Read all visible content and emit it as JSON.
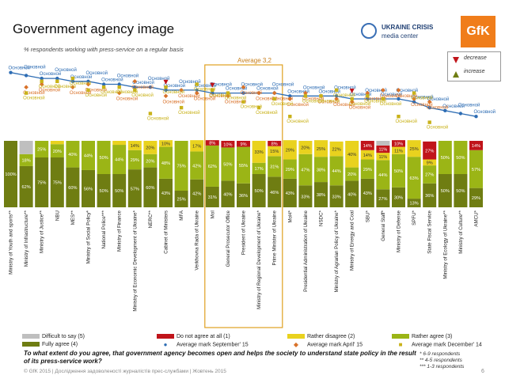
{
  "header": {
    "title": "Government agency image",
    "subtitle": "% respondents working with press-service on a regular basis",
    "logo_ucmc_line1": "UKRAINE CRISIS",
    "logo_ucmc_line2": "media center",
    "logo_gfk": "GfK"
  },
  "legend_box": {
    "decrease": "decrease",
    "increase": "increase"
  },
  "average_label": "Average 3,2",
  "colors": {
    "difficult": "#bfbfbf",
    "not_at_all": "#c0141a",
    "rather_disagree": "#e9d21e",
    "rather_agree": "#9bb516",
    "fully_agree": "#6f7d12",
    "avg_sep15": "#2e6db4",
    "avg_apr15": "#d9722a",
    "avg_dec14": "#c9b21a",
    "highlight": "#e0a020"
  },
  "chart_data": {
    "type": "bar",
    "stacked": true,
    "ylim": [
      0,
      100
    ],
    "categories": [
      "Ministry of Youth and sports**",
      "Ministry of Infrastructure**",
      "Ministry of Justice**",
      "NBU",
      "MES**",
      "Ministry of Social Policy*",
      "National Police***",
      "Ministry of Finance",
      "Ministry of Economic Development of Ukraine*",
      "NERC**",
      "Cabinet of Ministers",
      "MFA",
      "Verkhovna Rada of Ukraine",
      "MoI",
      "General Prosecutor Office",
      "President of Ukraine",
      "Ministry of Regional Development of Ukraine*",
      "Prime Minister of Ukraine",
      "MoH*",
      "Presidential Administration of Ukraine",
      "NSDC*",
      "Ministry of Agrarian Policy of Ukraine*",
      "Ministry of Energy and Coal",
      "SBU*",
      "General Staff*",
      "Ministry of Defense",
      "SPFU*",
      "State Fiscal Service",
      "Ministry of Ecology of Ukraine**",
      "Ministry of Culture**",
      "AMCU*"
    ],
    "series": [
      {
        "name": "Fully agree (4)",
        "key": "fully_agree",
        "values": [
          100,
          62,
          75,
          75,
          60,
          56,
          50,
          50,
          57,
          60,
          43,
          25,
          42,
          31,
          40,
          36,
          50,
          46,
          43,
          33,
          38,
          33,
          40,
          43,
          27,
          30,
          13,
          36,
          50,
          50,
          29
        ],
        "labels": [
          "100%",
          "62%",
          "75%",
          "75%",
          "60%",
          "56%",
          "50%",
          "50%",
          "57%",
          "60%",
          "43%",
          "25%",
          "42%",
          "31%",
          "40%",
          "36%",
          "50%",
          "46%",
          "43%",
          "33%",
          "38%",
          "33%",
          "40%",
          "43%",
          "27%",
          "30%",
          "13%",
          "36%",
          "50%",
          "50%",
          "29%"
        ]
      },
      {
        "name": "Rather agree (3)",
        "key": "rather_agree",
        "values": [
          0,
          18,
          25,
          20,
          40,
          44,
          50,
          44,
          29,
          20,
          48,
          75,
          42,
          62,
          50,
          55,
          17,
          31,
          29,
          47,
          38,
          44,
          20,
          29,
          44,
          50,
          63,
          27,
          50,
          50,
          57
        ],
        "labels": [
          "",
          "18%",
          "25%",
          "20%",
          "40%",
          "44%",
          "50%",
          "44%",
          "29%",
          "20%",
          "48%",
          "75%",
          "42%",
          "62%",
          "50%",
          "55%",
          "17%",
          "31%",
          "29%",
          "47%",
          "38%",
          "44%",
          "20%",
          "29%",
          "44%",
          "50%",
          "63%",
          "27%",
          "50%",
          "50%",
          "57%"
        ]
      },
      {
        "name": "Rather disagree (2)",
        "key": "rather_disagree",
        "values": [
          0,
          0,
          0,
          5,
          0,
          0,
          0,
          6,
          14,
          20,
          10,
          0,
          17,
          0,
          0,
          0,
          33,
          15,
          29,
          20,
          25,
          22,
          40,
          14,
          11,
          11,
          25,
          9,
          0,
          0,
          0
        ],
        "labels": [
          "",
          "",
          "",
          "5%",
          "",
          "",
          "",
          "6%",
          "14%",
          "20%",
          "10%",
          "",
          "17%",
          "",
          "",
          "",
          "33%",
          "15%",
          "29%",
          "20%",
          "25%",
          "22%",
          "40%",
          "14%",
          "11%",
          "11%",
          "25%",
          "9%",
          "",
          "",
          ""
        ]
      },
      {
        "name": "Do not agree at all (1)",
        "key": "not_at_all",
        "values": [
          0,
          0,
          0,
          0,
          0,
          0,
          0,
          0,
          0,
          0,
          0,
          0,
          0,
          8,
          10,
          9,
          0,
          8,
          0,
          0,
          0,
          0,
          0,
          14,
          11,
          10,
          0,
          27,
          0,
          0,
          14
        ],
        "labels": [
          "",
          "",
          "",
          "",
          "",
          "",
          "",
          "",
          "",
          "",
          "",
          "",
          "",
          "8%",
          "10%",
          "9%",
          "",
          "8%",
          "",
          "",
          "",
          "",
          "",
          "14%",
          "11%",
          "10%",
          "",
          "27%",
          "",
          "",
          "14%"
        ]
      },
      {
        "name": "Difficult to say (5)",
        "key": "difficult",
        "values": [
          0,
          20,
          0,
          0,
          0,
          0,
          0,
          0,
          0,
          0,
          0,
          0,
          0,
          0,
          0,
          0,
          0,
          0,
          0,
          0,
          0,
          0,
          0,
          0,
          7,
          0,
          0,
          0,
          0,
          0,
          0
        ],
        "labels": [
          "",
          "",
          "",
          "",
          "",
          "",
          "",
          "",
          "",
          "",
          "",
          "",
          "",
          "",
          "",
          "",
          "",
          "",
          "",
          "",
          "",
          "",
          "",
          "",
          "",
          "",
          "",
          "",
          "",
          "",
          ""
        ]
      }
    ],
    "avg_sep15": [
      3.9,
      3.8,
      3.7,
      3.7,
      3.6,
      3.6,
      3.5,
      3.5,
      3.4,
      3.4,
      3.3,
      3.3,
      3.3,
      3.2,
      3.2,
      3.2,
      3.2,
      3.2,
      3.1,
      3.1,
      3.1,
      3.1,
      3.0,
      3.0,
      3.0,
      3.0,
      2.9,
      2.7,
      2.6,
      2.5,
      2.4
    ],
    "avg_apr15": [
      null,
      3.4,
      3.5,
      null,
      3.4,
      3.5,
      null,
      3.2,
      3.6,
      null,
      3.1,
      3.3,
      3.2,
      3.3,
      3.1,
      3.4,
      3.2,
      3.2,
      3.0,
      3.2,
      3.1,
      3.0,
      2.9,
      3.2,
      3.3,
      3.3,
      3.0,
      2.9,
      null,
      null,
      null
    ],
    "avg_dec14": [
      null,
      3.2,
      3.6,
      3.6,
      3.7,
      3.3,
      3.4,
      3.4,
      3.3,
      2.5,
      3.4,
      2.7,
      3.5,
      3.3,
      3.2,
      2.9,
      2.7,
      3.0,
      2.4,
      3.1,
      3.1,
      3.3,
      3.0,
      3.1,
      3.0,
      2.4,
      3.2,
      2.2,
      null,
      null,
      null
    ],
    "trend": [
      "",
      "",
      "",
      "",
      "",
      "",
      "",
      "",
      "",
      "",
      "decrease",
      "",
      "",
      "decrease",
      "",
      "",
      "",
      "",
      "",
      "",
      "",
      "",
      "decrease",
      "",
      "",
      "",
      "",
      "",
      "",
      "",
      ""
    ],
    "point_labels": {
      "sep15": [
        "Основной",
        "Основной",
        "Основной",
        "Основной",
        "Основной",
        "Основной",
        "Основной",
        "Основной",
        "Основной",
        "Основной",
        "Основной",
        "Основной",
        "Основной",
        "Основной",
        "Основной",
        "Основной",
        "Основной",
        "Основной",
        "Основной",
        "Основной",
        "Основной",
        "Основной",
        "Основной",
        "Основной",
        "Основной",
        "Основной",
        "Основной",
        "Основной",
        "Основной",
        "Основной",
        "Основной"
      ],
      "apr15": [
        "",
        "Основной",
        "Основной",
        "",
        "Основной",
        "Основной",
        "",
        "Основной",
        "Основной",
        "",
        "Основной",
        "Основной",
        "Основной",
        "Основной",
        "Основной",
        "Основной",
        "Основной",
        "Основной",
        "Основной",
        "Основной",
        "Основной",
        "Основной",
        "Основной",
        "Основной",
        "Основной",
        "Основной",
        "Основной",
        "Основной",
        "",
        "",
        ""
      ],
      "dec14": [
        "",
        "Основной",
        "Основной",
        "Основной",
        "Основной",
        "Основной",
        "Основной",
        "Основной",
        "Основной",
        "Основной",
        "Основной",
        "Основной",
        "Основной",
        "Основной",
        "Основной",
        "Основной",
        "Основной",
        "Основной",
        "Основной",
        "Основной",
        "Основной",
        "Основной",
        "Основной",
        "Основной",
        "Основной",
        "Основной",
        "Основной",
        "Основной",
        "",
        "",
        ""
      ]
    }
  },
  "bottom_legend": {
    "difficult": "Difficult to say (5)",
    "fully_agree": "Fully agree (4)",
    "not_at_all": "Do not agree at all (1)",
    "avg_sep15": "Average mark September' 15",
    "rather_disagree": "Rather disagree (2)",
    "avg_apr15": "Average mark April' 15",
    "rather_agree": "Rather agree (3)",
    "avg_dec14": "Average mark December' 14"
  },
  "question": "To what extent do you agree, that government agency becomes open and helps the society to understand state policy in the result of its press-service work?",
  "notes": {
    "n1": "* 6-9 respondents",
    "n2": "** 4-5 respondents",
    "n3": "*** 1-3 respondents"
  },
  "footer": "© GfK 2015 | Дослідження задоволеності журналістів прес-службами | Жовтень 2015",
  "page_number": "6"
}
